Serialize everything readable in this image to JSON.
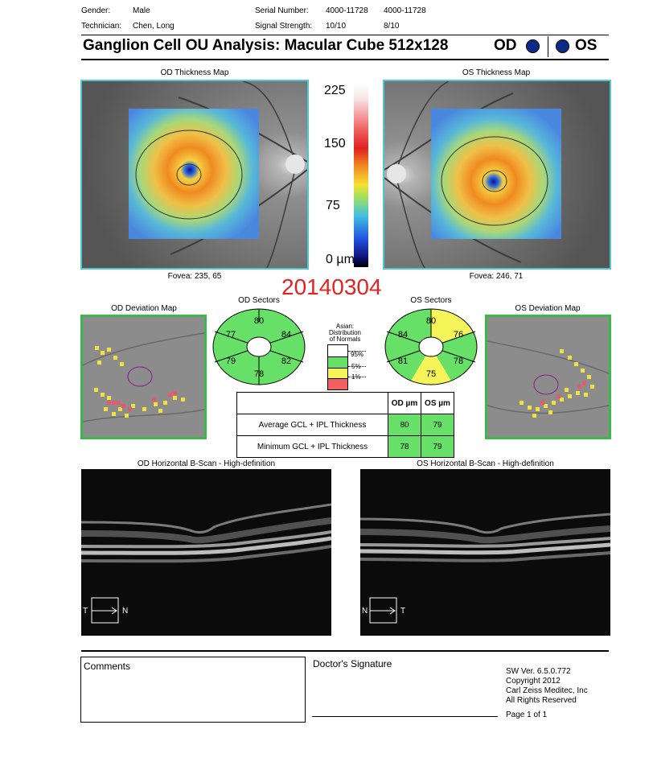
{
  "header": {
    "gender_label": "Gender:",
    "gender_value": "Male",
    "technician_label": "Technician:",
    "technician_value": "Chen, Long",
    "serial_label": "Serial Number:",
    "serial_od": "4000-11728",
    "serial_os": "4000-11728",
    "signal_label": "Signal Strength:",
    "signal_od": "10/10",
    "signal_os": "8/10"
  },
  "title": {
    "text": "Ganglion Cell OU Analysis: Macular Cube 512x128",
    "od": "OD",
    "os": "OS"
  },
  "thickness": {
    "od_title": "OD Thickness Map",
    "os_title": "OS Thickness Map",
    "od_fovea": "Fovea: 235, 65",
    "os_fovea": "Fovea: 246, 71",
    "scale_ticks": [
      "225",
      "150",
      "75",
      "0 µm"
    ]
  },
  "date_stamp": "20140304",
  "deviation": {
    "od_title": "OD Deviation Map",
    "os_title": "OS Deviation Map"
  },
  "sectors": {
    "od_title": "OD Sectors",
    "os_title": "OS Sectors",
    "od_values": {
      "top": "80",
      "upper_left": "77",
      "upper_right": "84",
      "lower_left": "79",
      "lower_right": "82",
      "bottom": "78"
    },
    "os_values": {
      "top": "80",
      "upper_left": "84",
      "upper_right": "76",
      "lower_left": "81",
      "lower_right": "78",
      "bottom": "75"
    },
    "colors": {
      "green": "#66e066",
      "yellow": "#f5f55a",
      "red": "#f06060",
      "white": "#ffffff"
    }
  },
  "legend": {
    "title_line1": "Asian:",
    "title_line2": "Distribution",
    "title_line3": "of Normals",
    "p95": "95%",
    "p5": "5%",
    "p1": "1%"
  },
  "gcl_table": {
    "col_od": "OD µm",
    "col_os": "OS µm",
    "rows": [
      {
        "label": "Average GCL + IPL Thickness",
        "od": "80",
        "os": "79"
      },
      {
        "label": "Minimum GCL + IPL Thickness",
        "od": "78",
        "os": "79"
      }
    ]
  },
  "bscan": {
    "od_title": "OD Horizontal B-Scan - High-definition",
    "os_title": "OS Horizontal B-Scan - High-definition",
    "od_left": "T",
    "od_right": "N",
    "os_left": "N",
    "os_right": "T"
  },
  "footer": {
    "comments": "Comments",
    "signature": "Doctor's Signature",
    "sw_ver": "SW Ver. 6.5.0.772",
    "copyright": "Copyright 2012",
    "company": "Carl Zeiss Meditec, Inc",
    "rights": "All Rights Reserved",
    "page": "Page 1 of 1"
  }
}
